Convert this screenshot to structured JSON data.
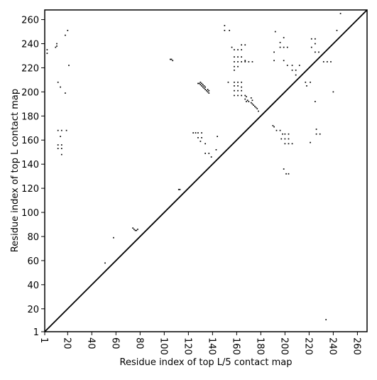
{
  "chart_data": {
    "type": "scatter",
    "xlabel": "Residue index of top L/5 contact map",
    "ylabel": "Residue index of top L contact map",
    "xlim": [
      1,
      268
    ],
    "ylim": [
      1,
      268
    ],
    "xticks": [
      1,
      20,
      40,
      60,
      80,
      100,
      120,
      140,
      160,
      180,
      200,
      220,
      240,
      260
    ],
    "yticks": [
      1,
      20,
      40,
      60,
      80,
      100,
      120,
      140,
      160,
      180,
      200,
      220,
      240,
      260
    ],
    "diagonal": true,
    "color": "#000000",
    "x": [
      3,
      3,
      10,
      11,
      11,
      20,
      18,
      21,
      12,
      14,
      18,
      12,
      15,
      19,
      12,
      12,
      15,
      15,
      15,
      14,
      106,
      107,
      105,
      112,
      113,
      74,
      75,
      76,
      77,
      78,
      58,
      51,
      128,
      129,
      130,
      131,
      132,
      133,
      134,
      135,
      136,
      137,
      130,
      131,
      132,
      133,
      134,
      136,
      137,
      124,
      126,
      128,
      131,
      128,
      131,
      130,
      134,
      134,
      137,
      139,
      144,
      143,
      150,
      150,
      154,
      156,
      158,
      161,
      164,
      164,
      167,
      158,
      161,
      164,
      158,
      161,
      164,
      167,
      170,
      173,
      158,
      161,
      158,
      167,
      158,
      161,
      164,
      158,
      161,
      164,
      158,
      161,
      164,
      158,
      161,
      164,
      167,
      153,
      167,
      169,
      170,
      172,
      173,
      174,
      175,
      176,
      177,
      178,
      172,
      173,
      168,
      168,
      190,
      191,
      193,
      196,
      198,
      200,
      203,
      197,
      200,
      203,
      200,
      203,
      206,
      199,
      201,
      203,
      191,
      191,
      192,
      196,
      199,
      196,
      199,
      202,
      199,
      202,
      206,
      206,
      209,
      209,
      212,
      217,
      218,
      221,
      221,
      222,
      225,
      222,
      225,
      228,
      225,
      225,
      226,
      226,
      229,
      232,
      235,
      238,
      240,
      243,
      246,
      234
    ],
    "values": [
      235,
      232,
      237,
      240,
      238,
      251,
      247,
      222,
      208,
      204,
      199,
      168,
      168,
      168,
      156,
      153,
      156,
      153,
      148,
      163,
      227,
      226,
      227,
      119,
      119,
      87,
      86,
      85,
      85,
      86,
      79,
      58,
      207,
      207,
      206,
      205,
      204,
      203,
      202,
      201,
      200,
      199,
      208,
      207,
      206,
      205,
      204,
      202,
      201,
      166,
      166,
      166,
      166,
      162,
      162,
      159,
      157,
      149,
      149,
      146,
      163,
      152,
      255,
      251,
      251,
      237,
      235,
      235,
      235,
      239,
      239,
      229,
      229,
      229,
      225,
      225,
      225,
      225,
      225,
      225,
      221,
      221,
      218,
      226,
      208,
      208,
      208,
      205,
      205,
      204,
      201,
      201,
      201,
      197,
      197,
      197,
      197,
      208,
      194,
      193,
      192,
      191,
      190,
      189,
      188,
      187,
      186,
      184,
      195,
      193,
      196,
      192,
      172,
      171,
      168,
      168,
      165,
      165,
      165,
      161,
      161,
      161,
      157,
      157,
      157,
      136,
      132,
      132,
      226,
      233,
      250,
      241,
      245,
      237,
      237,
      237,
      226,
      222,
      222,
      218,
      218,
      214,
      222,
      208,
      205,
      208,
      158,
      244,
      244,
      237,
      233,
      233,
      240,
      192,
      169,
      165,
      165,
      225,
      225,
      225,
      200,
      251,
      265,
      11
    ]
  }
}
